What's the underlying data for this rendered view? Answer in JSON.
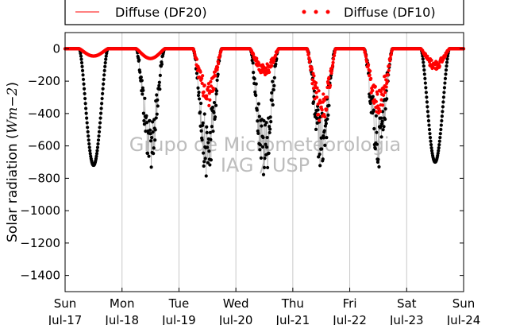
{
  "chart_data": {
    "type": "scatter",
    "ylabel": "Solar radiation (",
    "ylabel_unit": "Wm−2",
    "ylabel_close": ")",
    "ylim": [
      -1500,
      100
    ],
    "yticks": [
      0,
      -200,
      -400,
      -600,
      -800,
      -1000,
      -1200,
      -1400
    ],
    "ytick_labels": [
      "0",
      "−200",
      "−400",
      "−600",
      "−800",
      "−1000",
      "−1200",
      "−1400"
    ],
    "xlim_days": [
      0,
      7
    ],
    "xtick_labels": [
      {
        "day": "Sun",
        "date": "Jul-17"
      },
      {
        "day": "Mon",
        "date": "Jul-18"
      },
      {
        "day": "Tue",
        "date": "Jul-19"
      },
      {
        "day": "Wed",
        "date": "Jul-20"
      },
      {
        "day": "Thu",
        "date": "Jul-21"
      },
      {
        "day": "Fri",
        "date": "Jul-22"
      },
      {
        "day": "Sat",
        "date": "Jul-23"
      },
      {
        "day": "Sun",
        "date": "Jul-24"
      }
    ],
    "grid": "vertical",
    "legend_location": "top, above plot",
    "watermark": [
      "Grupo de Micrometeorologia",
      "IAG / USP"
    ],
    "series": [
      {
        "name": "Diffuse (DF20)",
        "style": "line",
        "color": "#ff0000",
        "daily_peaks": [
          -720,
          -710,
          -790,
          -780,
          -710,
          -700,
          -700
        ]
      },
      {
        "name": "Diffuse (DF10)",
        "style": "points",
        "color": "#ff0000",
        "daily_peaks": [
          -45,
          -60,
          -330,
          -160,
          -430,
          -380,
          -120
        ]
      }
    ],
    "colors": {
      "df20_points": "#000000",
      "df10_points": "#ff0000",
      "grid": "#c8c8c8",
      "watermark": "#bdbdbd"
    }
  }
}
